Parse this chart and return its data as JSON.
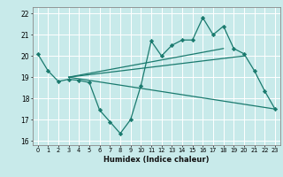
{
  "xlabel": "Humidex (Indice chaleur)",
  "ylabel": "",
  "background_color": "#c8eaea",
  "grid_color": "#ffffff",
  "line_color": "#1a7a6e",
  "xlim": [
    -0.5,
    23.5
  ],
  "ylim": [
    15.8,
    22.3
  ],
  "xtick_labels": [
    "0",
    "1",
    "2",
    "3",
    "4",
    "5",
    "6",
    "7",
    "8",
    "9",
    "10",
    "11",
    "12",
    "13",
    "14",
    "15",
    "16",
    "17",
    "18",
    "19",
    "20",
    "21",
    "22",
    "23"
  ],
  "ytick_values": [
    16,
    17,
    18,
    19,
    20,
    21,
    22
  ],
  "series": [
    {
      "x": [
        0,
        1,
        2,
        3,
        4,
        5,
        6,
        7,
        8,
        9,
        10,
        11,
        12,
        13,
        14,
        15,
        16,
        17,
        18,
        19,
        20,
        21,
        22,
        23
      ],
      "y": [
        20.1,
        19.3,
        18.8,
        18.9,
        18.85,
        18.75,
        17.45,
        16.9,
        16.35,
        17.0,
        18.6,
        20.7,
        20.0,
        20.5,
        20.75,
        20.75,
        21.8,
        21.0,
        21.4,
        20.35,
        20.1,
        19.3,
        18.35,
        17.5
      ]
    },
    {
      "x": [
        3,
        23
      ],
      "y": [
        19.0,
        17.5
      ]
    },
    {
      "x": [
        3,
        18
      ],
      "y": [
        19.0,
        20.35
      ]
    },
    {
      "x": [
        3,
        20
      ],
      "y": [
        19.0,
        20.0
      ]
    }
  ]
}
